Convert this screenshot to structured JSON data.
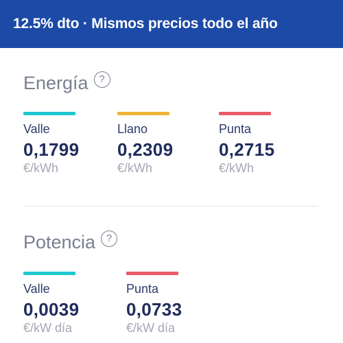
{
  "banner": {
    "text": "12.5% dto · Mismos precios todo el año"
  },
  "energy": {
    "title": "Energía",
    "help_icon": "?",
    "tiers": [
      {
        "label": "Valle",
        "price": "0,1799",
        "unit": "€/kWh",
        "color": "#1fc7cf"
      },
      {
        "label": "Llano",
        "price": "0,2309",
        "unit": "€/kWh",
        "color": "#f0b43a"
      },
      {
        "label": "Punta",
        "price": "0,2715",
        "unit": "€/kWh",
        "color": "#ea5a6a"
      }
    ]
  },
  "power": {
    "title": "Potencia",
    "help_icon": "?",
    "tiers": [
      {
        "label": "Valle",
        "price": "0,0039",
        "unit": "€/kW día",
        "color": "#1fc7cf"
      },
      {
        "label": "Punta",
        "price": "0,0733",
        "unit": "€/kW día",
        "color": "#ea5a6a"
      }
    ]
  }
}
